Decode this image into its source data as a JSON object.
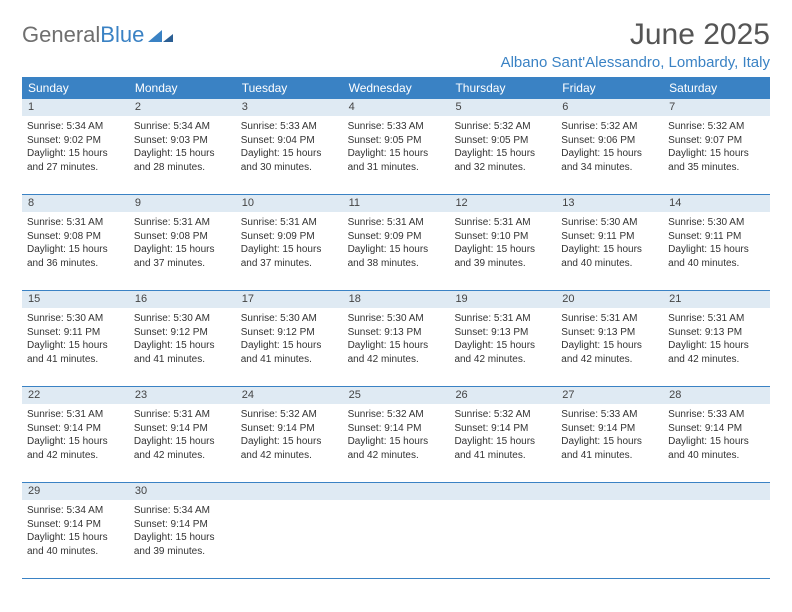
{
  "logo": {
    "text1": "General",
    "text2": "Blue"
  },
  "title": "June 2025",
  "location": "Albano Sant'Alessandro, Lombardy, Italy",
  "colors": {
    "header_bg": "#3a82c4",
    "daynum_bg": "#dfeaf3",
    "rule": "#3a82c4",
    "title_color": "#555555",
    "logo_gray": "#6f6f6f"
  },
  "daysOfWeek": [
    "Sunday",
    "Monday",
    "Tuesday",
    "Wednesday",
    "Thursday",
    "Friday",
    "Saturday"
  ],
  "weeks": [
    [
      {
        "n": "1",
        "sr": "5:34 AM",
        "ss": "9:02 PM",
        "dl": "15 hours and 27 minutes."
      },
      {
        "n": "2",
        "sr": "5:34 AM",
        "ss": "9:03 PM",
        "dl": "15 hours and 28 minutes."
      },
      {
        "n": "3",
        "sr": "5:33 AM",
        "ss": "9:04 PM",
        "dl": "15 hours and 30 minutes."
      },
      {
        "n": "4",
        "sr": "5:33 AM",
        "ss": "9:05 PM",
        "dl": "15 hours and 31 minutes."
      },
      {
        "n": "5",
        "sr": "5:32 AM",
        "ss": "9:05 PM",
        "dl": "15 hours and 32 minutes."
      },
      {
        "n": "6",
        "sr": "5:32 AM",
        "ss": "9:06 PM",
        "dl": "15 hours and 34 minutes."
      },
      {
        "n": "7",
        "sr": "5:32 AM",
        "ss": "9:07 PM",
        "dl": "15 hours and 35 minutes."
      }
    ],
    [
      {
        "n": "8",
        "sr": "5:31 AM",
        "ss": "9:08 PM",
        "dl": "15 hours and 36 minutes."
      },
      {
        "n": "9",
        "sr": "5:31 AM",
        "ss": "9:08 PM",
        "dl": "15 hours and 37 minutes."
      },
      {
        "n": "10",
        "sr": "5:31 AM",
        "ss": "9:09 PM",
        "dl": "15 hours and 37 minutes."
      },
      {
        "n": "11",
        "sr": "5:31 AM",
        "ss": "9:09 PM",
        "dl": "15 hours and 38 minutes."
      },
      {
        "n": "12",
        "sr": "5:31 AM",
        "ss": "9:10 PM",
        "dl": "15 hours and 39 minutes."
      },
      {
        "n": "13",
        "sr": "5:30 AM",
        "ss": "9:11 PM",
        "dl": "15 hours and 40 minutes."
      },
      {
        "n": "14",
        "sr": "5:30 AM",
        "ss": "9:11 PM",
        "dl": "15 hours and 40 minutes."
      }
    ],
    [
      {
        "n": "15",
        "sr": "5:30 AM",
        "ss": "9:11 PM",
        "dl": "15 hours and 41 minutes."
      },
      {
        "n": "16",
        "sr": "5:30 AM",
        "ss": "9:12 PM",
        "dl": "15 hours and 41 minutes."
      },
      {
        "n": "17",
        "sr": "5:30 AM",
        "ss": "9:12 PM",
        "dl": "15 hours and 41 minutes."
      },
      {
        "n": "18",
        "sr": "5:30 AM",
        "ss": "9:13 PM",
        "dl": "15 hours and 42 minutes."
      },
      {
        "n": "19",
        "sr": "5:31 AM",
        "ss": "9:13 PM",
        "dl": "15 hours and 42 minutes."
      },
      {
        "n": "20",
        "sr": "5:31 AM",
        "ss": "9:13 PM",
        "dl": "15 hours and 42 minutes."
      },
      {
        "n": "21",
        "sr": "5:31 AM",
        "ss": "9:13 PM",
        "dl": "15 hours and 42 minutes."
      }
    ],
    [
      {
        "n": "22",
        "sr": "5:31 AM",
        "ss": "9:14 PM",
        "dl": "15 hours and 42 minutes."
      },
      {
        "n": "23",
        "sr": "5:31 AM",
        "ss": "9:14 PM",
        "dl": "15 hours and 42 minutes."
      },
      {
        "n": "24",
        "sr": "5:32 AM",
        "ss": "9:14 PM",
        "dl": "15 hours and 42 minutes."
      },
      {
        "n": "25",
        "sr": "5:32 AM",
        "ss": "9:14 PM",
        "dl": "15 hours and 42 minutes."
      },
      {
        "n": "26",
        "sr": "5:32 AM",
        "ss": "9:14 PM",
        "dl": "15 hours and 41 minutes."
      },
      {
        "n": "27",
        "sr": "5:33 AM",
        "ss": "9:14 PM",
        "dl": "15 hours and 41 minutes."
      },
      {
        "n": "28",
        "sr": "5:33 AM",
        "ss": "9:14 PM",
        "dl": "15 hours and 40 minutes."
      }
    ],
    [
      {
        "n": "29",
        "sr": "5:34 AM",
        "ss": "9:14 PM",
        "dl": "15 hours and 40 minutes."
      },
      {
        "n": "30",
        "sr": "5:34 AM",
        "ss": "9:14 PM",
        "dl": "15 hours and 39 minutes."
      },
      null,
      null,
      null,
      null,
      null
    ]
  ],
  "labels": {
    "sunrise": "Sunrise: ",
    "sunset": "Sunset: ",
    "daylight": "Daylight: "
  }
}
